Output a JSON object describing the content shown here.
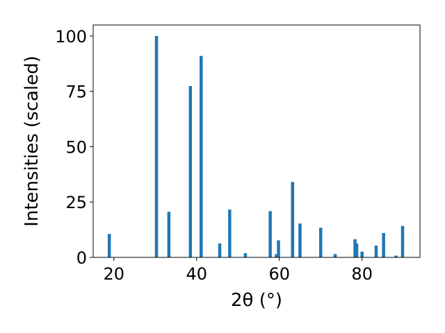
{
  "chart_data": {
    "type": "bar",
    "xlabel": "2θ (°)",
    "ylabel": "Intensities (scaled)",
    "xlim": [
      15,
      94
    ],
    "ylim": [
      0,
      105
    ],
    "xticks": [
      20,
      40,
      60,
      80
    ],
    "yticks": [
      0,
      25,
      50,
      75,
      100
    ],
    "grid": false,
    "bar_color": "#1f77b4",
    "series": [
      {
        "x": [
          18.9,
          30.3,
          33.3,
          38.5,
          41.1,
          45.6,
          48.0,
          51.8,
          57.8,
          59.3,
          59.8,
          63.2,
          65.0,
          70.0,
          73.5,
          78.3,
          78.7,
          80.0,
          83.4,
          85.2,
          88.2,
          89.8
        ],
        "values": [
          10.6,
          100.0,
          20.6,
          77.4,
          91.0,
          6.3,
          21.6,
          1.9,
          20.9,
          1.5,
          7.7,
          34.1,
          15.3,
          13.4,
          1.5,
          8.2,
          6.3,
          2.6,
          5.3,
          11.0,
          0.8,
          14.2
        ]
      }
    ]
  }
}
